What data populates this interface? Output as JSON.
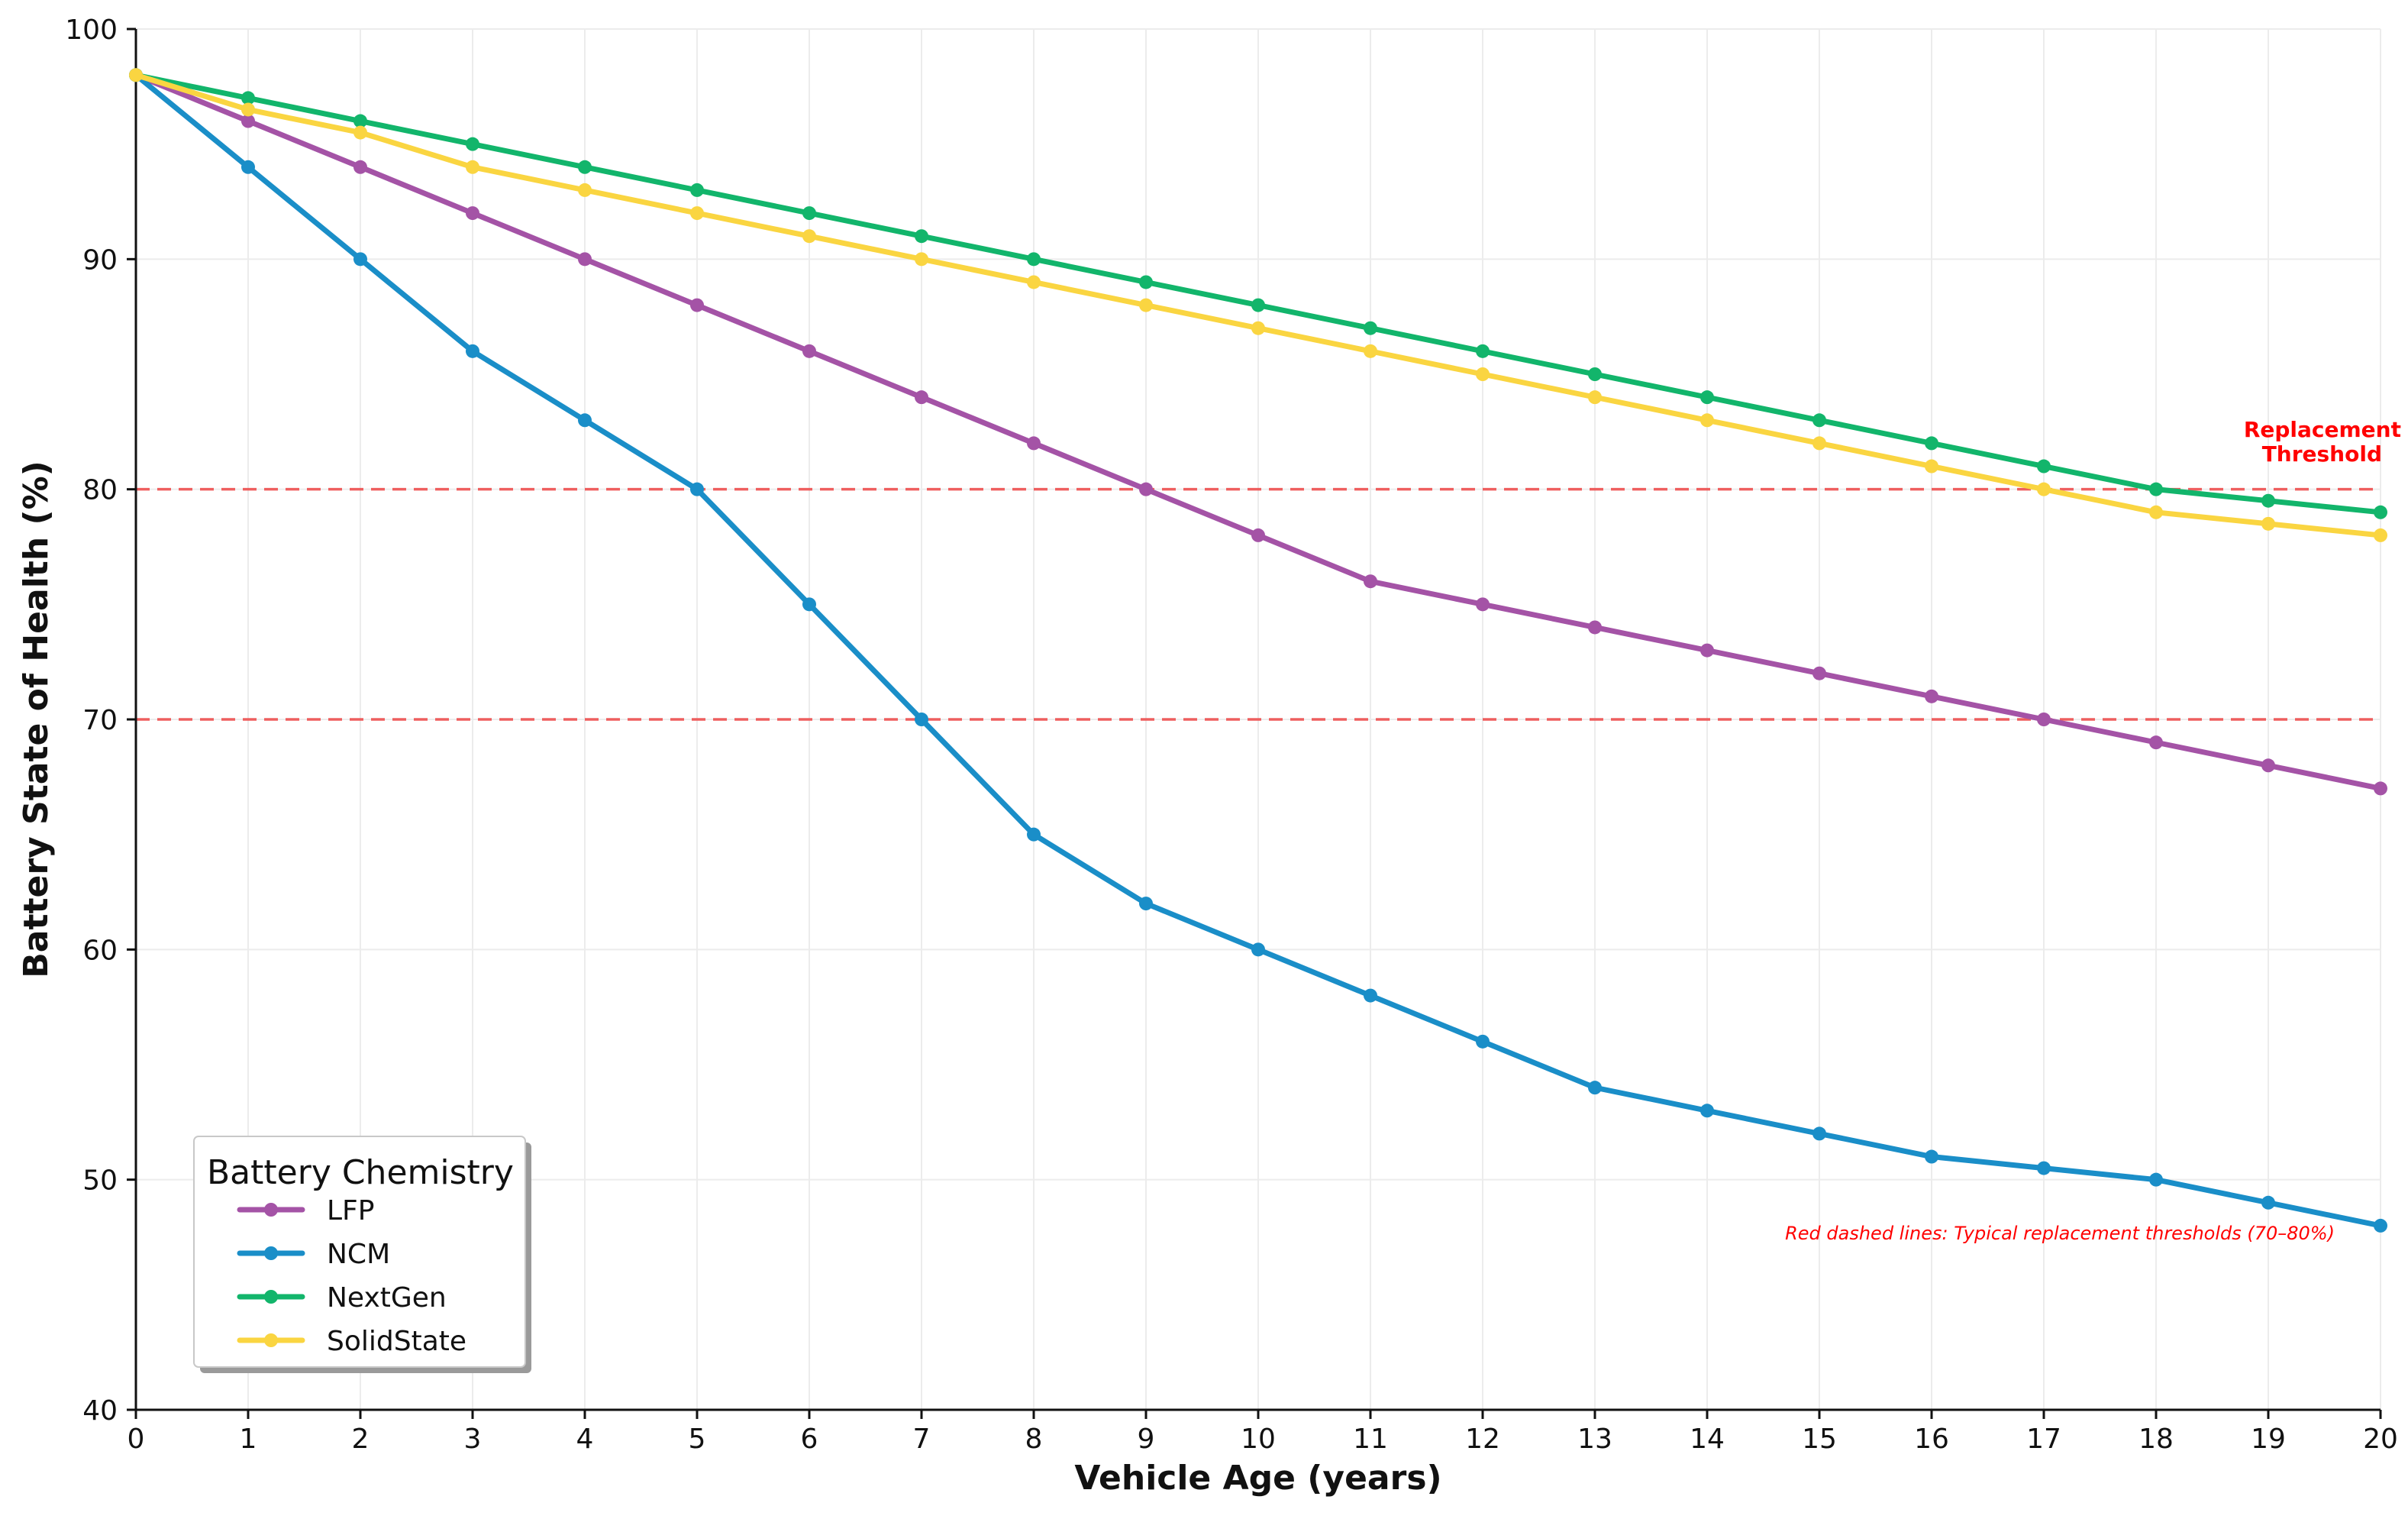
{
  "chart_data": {
    "type": "line",
    "title": "",
    "xlabel": "Vehicle Age (years)",
    "ylabel": "Battery State of Health (%)",
    "xlim": [
      0,
      20
    ],
    "ylim": [
      40,
      100
    ],
    "x": [
      0,
      1,
      2,
      3,
      4,
      5,
      6,
      7,
      8,
      9,
      10,
      11,
      12,
      13,
      14,
      15,
      16,
      17,
      18,
      19,
      20
    ],
    "x_ticks": [
      "0",
      "1",
      "2",
      "3",
      "4",
      "5",
      "6",
      "7",
      "8",
      "9",
      "10",
      "11",
      "12",
      "13",
      "14",
      "15",
      "16",
      "17",
      "18",
      "19",
      "20"
    ],
    "y_ticks": [
      "40",
      "50",
      "60",
      "70",
      "80",
      "90",
      "100"
    ],
    "grid": true,
    "series": [
      {
        "name": "LFP",
        "color": "#a453a6",
        "values": [
          98,
          96,
          94,
          92,
          90,
          88,
          86,
          84,
          82,
          80,
          78,
          76,
          75,
          74,
          73,
          72,
          71,
          70,
          69,
          68,
          67
        ]
      },
      {
        "name": "NCM",
        "color": "#1a8ec8",
        "values": [
          98,
          94,
          90,
          86,
          83,
          80,
          75,
          70,
          65,
          62,
          60,
          58,
          56,
          54,
          53,
          52,
          51,
          50.5,
          50,
          49,
          48
        ]
      },
      {
        "name": "NextGen",
        "color": "#12b56b",
        "values": [
          98,
          97,
          96,
          95,
          94,
          93,
          92,
          91,
          90,
          89,
          88,
          87,
          86,
          85,
          84,
          83,
          82,
          81,
          80,
          79.5,
          79
        ]
      },
      {
        "name": "SolidState",
        "color": "#fad541",
        "values": [
          98,
          96.5,
          95.5,
          94,
          93,
          92,
          91,
          90,
          89,
          88,
          87,
          86,
          85,
          84,
          83,
          82,
          81,
          80,
          79,
          78.5,
          78
        ]
      }
    ],
    "threshold_lines": [
      {
        "y": 80,
        "color": "#ee3b3b"
      },
      {
        "y": 70,
        "color": "#ee3b3b"
      }
    ],
    "legend": {
      "title": "Battery Chemistry",
      "placement": "lower-left"
    },
    "annotations": {
      "threshold_label_line1": "Replacement",
      "threshold_label_line2": "Threshold",
      "threshold_note": "Red dashed lines: Typical replacement thresholds (70–80%)",
      "color": "#ff0000"
    }
  }
}
